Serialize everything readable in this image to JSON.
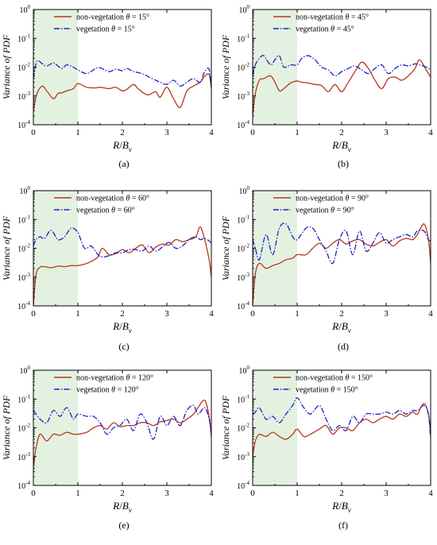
{
  "figure": {
    "line_colors": {
      "non_vegetation": "#b5381c",
      "vegetation": "#1f1fc8"
    },
    "shade_color": "#e3f2e0",
    "xlabel_main": "R",
    "xlabel_sep": "/",
    "xlabel_B": "B",
    "xlabel_sub": "v",
    "ylabel": "Variance of PDF",
    "ytick_base": "10",
    "ytick_exps": [
      "0",
      "-1",
      "-2",
      "-3",
      "-4"
    ],
    "xticks": [
      "0",
      "1",
      "2",
      "3",
      "4"
    ],
    "legend_nonveg_prefix": "non-vegetation ",
    "legend_veg_prefix": "vegetation ",
    "theta_symbol": "θ",
    "legend_eq": " = "
  },
  "chart_data": [
    {
      "type": "line",
      "panel_label": "(a)",
      "theta": "15°",
      "xlim": [
        0,
        4
      ],
      "ylim": [
        0.0001,
        1
      ],
      "yscale": "log",
      "shaded_region": [
        0,
        1
      ],
      "grid": false,
      "legend_position": "top-left",
      "x": [
        0,
        0.08,
        0.2,
        0.3,
        0.45,
        0.55,
        0.65,
        0.75,
        0.9,
        1.0,
        1.2,
        1.4,
        1.5,
        1.7,
        1.85,
        2.0,
        2.1,
        2.25,
        2.35,
        2.5,
        2.6,
        2.75,
        2.85,
        3.0,
        3.15,
        3.3,
        3.45,
        3.6,
        3.75,
        3.85,
        3.95,
        4.0
      ],
      "series": [
        {
          "name": "non-vegetation θ = 15°",
          "values": [
            0.0003,
            0.0012,
            0.0022,
            0.0015,
            0.0008,
            0.0012,
            0.0013,
            0.0015,
            0.0018,
            0.0027,
            0.002,
            0.0019,
            0.002,
            0.0018,
            0.002,
            0.0015,
            0.0017,
            0.0025,
            0.0018,
            0.0012,
            0.0011,
            0.0014,
            0.0009,
            0.002,
            0.0008,
            0.0004,
            0.0015,
            0.0022,
            0.003,
            0.0048,
            0.0055,
            0.0018
          ]
        },
        {
          "name": "vegetation θ = 15°",
          "values": [
            0.004,
            0.016,
            0.013,
            0.011,
            0.014,
            0.011,
            0.009,
            0.012,
            0.01,
            0.008,
            0.006,
            0.009,
            0.0095,
            0.007,
            0.0085,
            0.0075,
            0.009,
            0.007,
            0.0065,
            0.0055,
            0.0045,
            0.0035,
            0.003,
            0.0025,
            0.0035,
            0.0022,
            0.003,
            0.004,
            0.003,
            0.007,
            0.0085,
            0.002
          ]
        }
      ]
    },
    {
      "type": "line",
      "panel_label": "(b)",
      "theta": "45°",
      "xlim": [
        0,
        4
      ],
      "ylim": [
        0.0001,
        1
      ],
      "yscale": "log",
      "shaded_region": [
        0,
        1
      ],
      "grid": false,
      "legend_position": "top-left",
      "x": [
        0,
        0.06,
        0.15,
        0.25,
        0.4,
        0.5,
        0.6,
        0.7,
        0.85,
        1.0,
        1.1,
        1.25,
        1.4,
        1.55,
        1.7,
        1.85,
        2.0,
        2.15,
        2.3,
        2.45,
        2.6,
        2.75,
        2.9,
        3.05,
        3.2,
        3.35,
        3.5,
        3.65,
        3.75,
        3.9,
        4.0
      ],
      "series": [
        {
          "name": "non-vegetation θ = 45°",
          "values": [
            0.0002,
            0.0012,
            0.0035,
            0.004,
            0.005,
            0.003,
            0.0015,
            0.0018,
            0.0028,
            0.0033,
            0.003,
            0.0028,
            0.0025,
            0.0023,
            0.0014,
            0.0025,
            0.0014,
            0.003,
            0.007,
            0.015,
            0.009,
            0.0035,
            0.0018,
            0.004,
            0.0045,
            0.0035,
            0.005,
            0.009,
            0.018,
            0.008,
            0.0045
          ]
        },
        {
          "name": "vegetation θ = 45°",
          "values": [
            0.005,
            0.012,
            0.02,
            0.025,
            0.012,
            0.018,
            0.025,
            0.01,
            0.012,
            0.012,
            0.02,
            0.025,
            0.018,
            0.01,
            0.008,
            0.005,
            0.007,
            0.009,
            0.011,
            0.008,
            0.006,
            0.009,
            0.012,
            0.006,
            0.009,
            0.012,
            0.011,
            0.013,
            0.012,
            0.01,
            0.008
          ]
        }
      ]
    },
    {
      "type": "line",
      "panel_label": "(c)",
      "theta": "60°",
      "xlim": [
        0,
        4
      ],
      "ylim": [
        0.0001,
        1
      ],
      "yscale": "log",
      "shaded_region": [
        0,
        1
      ],
      "grid": false,
      "legend_position": "top-left",
      "x": [
        0,
        0.06,
        0.15,
        0.25,
        0.4,
        0.55,
        0.7,
        0.85,
        1.0,
        1.15,
        1.3,
        1.45,
        1.55,
        1.7,
        1.85,
        2.0,
        2.15,
        2.3,
        2.45,
        2.6,
        2.75,
        2.9,
        3.05,
        3.2,
        3.35,
        3.5,
        3.65,
        3.75,
        3.85,
        3.95,
        4.0
      ],
      "series": [
        {
          "name": "non-vegetation θ = 60°",
          "values": [
            0.0001,
            0.0012,
            0.0022,
            0.0023,
            0.0021,
            0.0024,
            0.0023,
            0.0025,
            0.0025,
            0.0028,
            0.0035,
            0.005,
            0.01,
            0.006,
            0.0065,
            0.009,
            0.007,
            0.01,
            0.013,
            0.007,
            0.011,
            0.014,
            0.013,
            0.02,
            0.017,
            0.02,
            0.025,
            0.055,
            0.02,
            0.004,
            0.001
          ]
        },
        {
          "name": "vegetation θ = 60°",
          "values": [
            0.012,
            0.02,
            0.025,
            0.022,
            0.042,
            0.02,
            0.025,
            0.05,
            0.035,
            0.01,
            0.012,
            0.006,
            0.005,
            0.0055,
            0.007,
            0.007,
            0.009,
            0.009,
            0.008,
            0.012,
            0.008,
            0.011,
            0.016,
            0.01,
            0.012,
            0.02,
            0.025,
            0.02,
            0.022,
            0.018,
            0.015
          ]
        }
      ]
    },
    {
      "type": "line",
      "panel_label": "(d)",
      "theta": "90°",
      "xlim": [
        0,
        4
      ],
      "ylim": [
        0.0001,
        1
      ],
      "yscale": "log",
      "shaded_region": [
        0,
        1
      ],
      "grid": false,
      "legend_position": "top-left",
      "x": [
        0,
        0.06,
        0.15,
        0.3,
        0.45,
        0.6,
        0.75,
        0.9,
        1.0,
        1.2,
        1.35,
        1.5,
        1.65,
        1.8,
        1.95,
        2.1,
        2.25,
        2.4,
        2.55,
        2.7,
        2.85,
        3.0,
        3.15,
        3.3,
        3.45,
        3.6,
        3.7,
        3.85,
        3.95,
        4.0
      ],
      "series": [
        {
          "name": "non-vegetation θ = 90°",
          "values": [
            0.0001,
            0.0013,
            0.003,
            0.002,
            0.0025,
            0.003,
            0.004,
            0.0045,
            0.006,
            0.006,
            0.01,
            0.015,
            0.01,
            0.015,
            0.02,
            0.014,
            0.018,
            0.02,
            0.014,
            0.012,
            0.016,
            0.02,
            0.012,
            0.018,
            0.022,
            0.02,
            0.03,
            0.07,
            0.02,
            0.003
          ]
        },
        {
          "name": "vegetation θ = 90°",
          "values": [
            0.02,
            0.01,
            0.004,
            0.03,
            0.006,
            0.05,
            0.07,
            0.025,
            0.02,
            0.05,
            0.05,
            0.02,
            0.008,
            0.003,
            0.02,
            0.04,
            0.006,
            0.04,
            0.008,
            0.015,
            0.035,
            0.015,
            0.02,
            0.025,
            0.03,
            0.025,
            0.04,
            0.04,
            0.02,
            0.018
          ]
        }
      ]
    },
    {
      "type": "line",
      "panel_label": "(e)",
      "theta": "120°",
      "xlim": [
        0,
        4
      ],
      "ylim": [
        0.0001,
        1
      ],
      "yscale": "log",
      "shaded_region": [
        0,
        1
      ],
      "grid": false,
      "legend_position": "top-left",
      "x": [
        0,
        0.06,
        0.15,
        0.3,
        0.45,
        0.6,
        0.75,
        0.9,
        1.0,
        1.2,
        1.35,
        1.5,
        1.65,
        1.8,
        1.95,
        2.1,
        2.25,
        2.4,
        2.55,
        2.7,
        2.85,
        3.0,
        3.15,
        3.3,
        3.45,
        3.6,
        3.7,
        3.85,
        3.95,
        4.0
      ],
      "series": [
        {
          "name": "non-vegetation θ = 120°",
          "values": [
            0.0005,
            0.002,
            0.006,
            0.0035,
            0.006,
            0.0055,
            0.007,
            0.006,
            0.006,
            0.007,
            0.01,
            0.012,
            0.009,
            0.015,
            0.011,
            0.012,
            0.012,
            0.015,
            0.015,
            0.012,
            0.016,
            0.018,
            0.02,
            0.015,
            0.02,
            0.03,
            0.05,
            0.09,
            0.025,
            0.005
          ]
        },
        {
          "name": "vegetation θ = 120°",
          "values": [
            0.04,
            0.03,
            0.02,
            0.015,
            0.04,
            0.025,
            0.05,
            0.02,
            0.03,
            0.025,
            0.025,
            0.015,
            0.006,
            0.01,
            0.012,
            0.02,
            0.008,
            0.03,
            0.015,
            0.004,
            0.025,
            0.012,
            0.025,
            0.012,
            0.04,
            0.06,
            0.03,
            0.05,
            0.02,
            0.007
          ]
        }
      ]
    },
    {
      "type": "line",
      "panel_label": "(f)",
      "theta": "150°",
      "xlim": [
        0,
        4
      ],
      "ylim": [
        0.0001,
        1
      ],
      "yscale": "log",
      "shaded_region": [
        0,
        1
      ],
      "grid": false,
      "legend_position": "top-left",
      "x": [
        0,
        0.06,
        0.15,
        0.3,
        0.45,
        0.6,
        0.75,
        0.9,
        1.0,
        1.15,
        1.3,
        1.5,
        1.65,
        1.8,
        1.95,
        2.1,
        2.25,
        2.4,
        2.55,
        2.7,
        2.85,
        3.0,
        3.15,
        3.3,
        3.45,
        3.6,
        3.7,
        3.85,
        3.95,
        4.0
      ],
      "series": [
        {
          "name": "non-vegetation θ = 150°",
          "values": [
            0.001,
            0.0035,
            0.006,
            0.005,
            0.007,
            0.005,
            0.004,
            0.006,
            0.009,
            0.005,
            0.006,
            0.009,
            0.012,
            0.006,
            0.01,
            0.01,
            0.008,
            0.015,
            0.02,
            0.015,
            0.02,
            0.025,
            0.02,
            0.03,
            0.025,
            0.035,
            0.03,
            0.07,
            0.03,
            0.006
          ]
        },
        {
          "name": "vegetation θ = 150°",
          "values": [
            0.03,
            0.035,
            0.05,
            0.02,
            0.025,
            0.015,
            0.03,
            0.06,
            0.11,
            0.05,
            0.03,
            0.06,
            0.02,
            0.008,
            0.012,
            0.008,
            0.025,
            0.015,
            0.03,
            0.03,
            0.03,
            0.035,
            0.03,
            0.04,
            0.03,
            0.04,
            0.04,
            0.06,
            0.03,
            0.004
          ]
        }
      ]
    }
  ]
}
